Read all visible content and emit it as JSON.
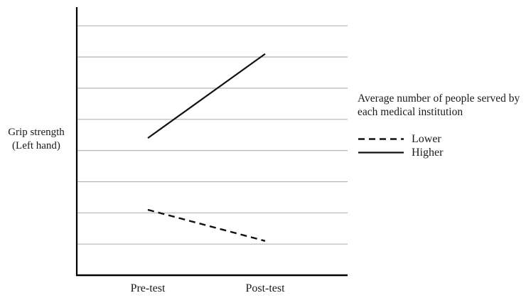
{
  "figure": {
    "background": "#ffffff",
    "axis_color": "#000000",
    "gridline_color": "#b3b3b3",
    "series_color": "#111111"
  },
  "y_axis": {
    "label_line1": "Grip strength",
    "label_line2": "(Left hand)"
  },
  "x_axis": {
    "categories": [
      "Pre-test",
      "Post-test"
    ]
  },
  "legend": {
    "title_line1": "Average number of people served by",
    "title_line2": "each medical institution",
    "items": [
      {
        "label": "Lower",
        "style": "dashed"
      },
      {
        "label": "Higher",
        "style": "solid"
      }
    ]
  },
  "chart_data": {
    "type": "line",
    "x": [
      "Pre-test",
      "Post-test"
    ],
    "series": [
      {
        "name": "Lower",
        "style": "dashed",
        "values": [
          2.1,
          1.1
        ]
      },
      {
        "name": "Higher",
        "style": "solid",
        "values": [
          4.4,
          7.1
        ]
      }
    ],
    "title": "",
    "xlabel": "",
    "ylabel": "Grip strength (Left hand)",
    "ylim": [
      0,
      8.6
    ],
    "y_tick_labels": [],
    "gridlines": {
      "horizontal": true,
      "count": 8,
      "spacing_units": 1
    },
    "legend_position": "right",
    "legend_title": "Average number of people served by each medical institution"
  }
}
